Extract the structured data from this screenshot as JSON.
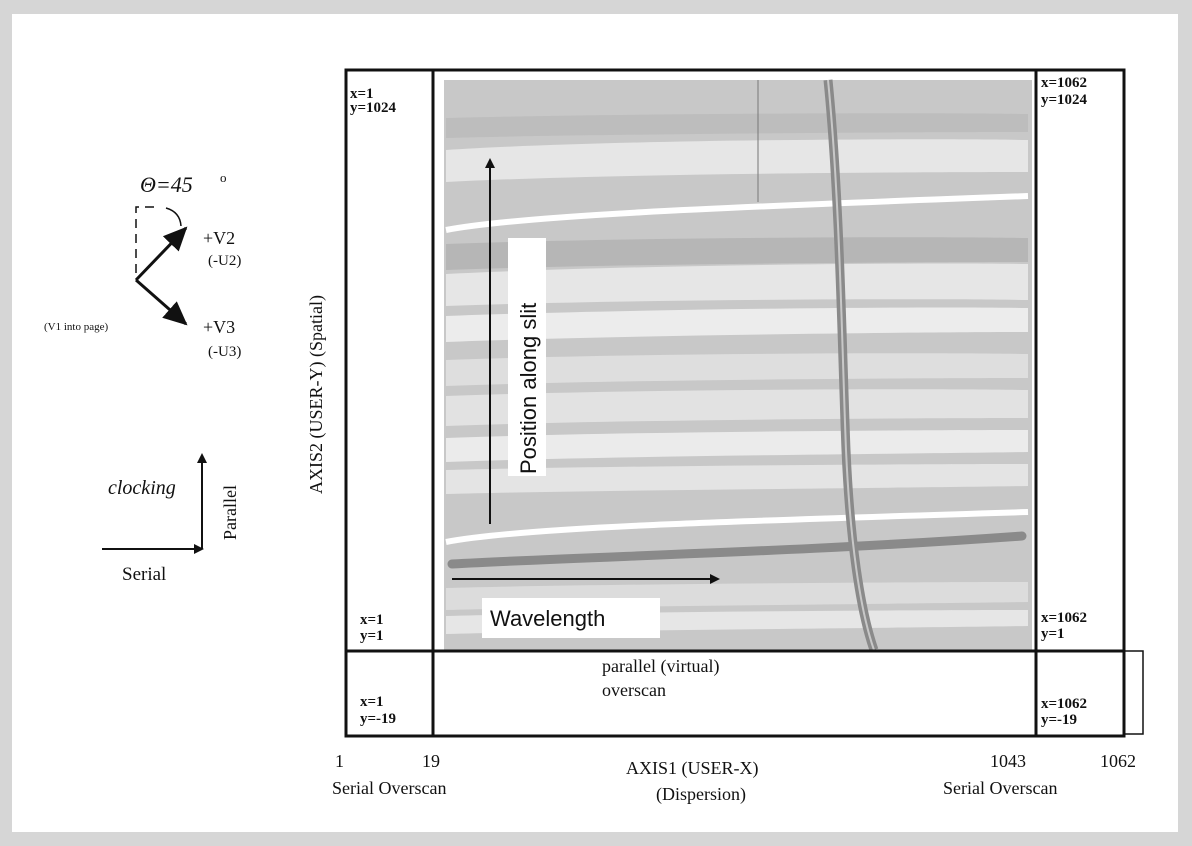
{
  "orientation": {
    "theta_label": "Θ=45",
    "theta_degree_symbol": "o",
    "v2_label": "+V2",
    "u2_label": "(-U2)",
    "v3_label": "+V3",
    "u3_label": "(-U3)",
    "v1_label": "(V1 into page)"
  },
  "clocking": {
    "clocking_label": "clocking",
    "parallel_label": "Parallel",
    "serial_label": "Serial"
  },
  "axes": {
    "y_axis_label": "AXIS2 (USER-Y)  (Spatial)",
    "x_axis_label": "AXIS1 (USER-X)",
    "x_axis_sublabel": "(Dispersion)",
    "tick_1": "1",
    "tick_19": "19",
    "tick_1043": "1043",
    "tick_1062": "1062",
    "serial_overscan_left": "Serial Overscan",
    "serial_overscan_right": "Serial Overscan"
  },
  "corners": {
    "tl_x": "x=1",
    "tl_y": "y=1024",
    "tr_x": "x=1062",
    "tr_y": "y=1024",
    "ml_x": "x=1",
    "ml_y": "y=1",
    "mr_x": "x=1062",
    "mr_y": "y=1",
    "bl_x": "x=1",
    "bl_y": "y=-19",
    "br_x": "x=1062",
    "br_y": "y=-19"
  },
  "overscan": {
    "line1": "parallel (virtual)",
    "line2": "overscan"
  },
  "image_region": {
    "position_label": "Position along slit",
    "wavelength_label": "Wavelength"
  },
  "colors": {
    "background": "#d6d6d6",
    "panel": "#ffffff",
    "spectrum_base": "#c8c8c8",
    "band_light": "#e6e6e6",
    "band_dark": "#b4b4b4",
    "stripe_dark": "#8a8a8a"
  }
}
